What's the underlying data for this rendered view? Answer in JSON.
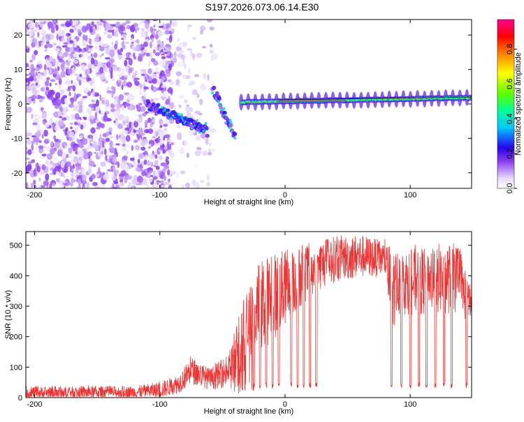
{
  "title": "S197.2026.073.06.14.E30",
  "colors": {
    "snr_line": "#ee3333",
    "scatter_low": "#d9c2f5",
    "scatter_mid": "#9a5cf0",
    "scatter_high": "#6a10e8"
  },
  "chart_data": [
    {
      "type": "heatmap",
      "name": "spectrogram",
      "xlabel": "Height of straight line (km)",
      "ylabel": "Frequency (Hz)",
      "xlim": [
        -207,
        149
      ],
      "ylim": [
        -24.5,
        24.5
      ],
      "xticks": [
        -200,
        -100,
        0,
        100
      ],
      "xtick_labels": [
        "-200",
        "-100",
        "0",
        "100"
      ],
      "yticks": [
        -20,
        -10,
        0,
        10,
        20
      ],
      "ytick_labels": [
        "-20",
        "-10",
        "0",
        "10",
        "20"
      ],
      "grid": false,
      "colorbar": {
        "label": "Normalized spectral amplitude",
        "range": [
          0,
          0.97
        ],
        "ticks": [
          0.0,
          0.2,
          0.4,
          0.6,
          0.8
        ],
        "tick_labels": [
          "0.0",
          "0.2",
          "0.4",
          "0.6",
          "0.8"
        ],
        "colormap": "rainbow-white-to-magenta"
      },
      "features": [
        {
          "desc": "noise scatter",
          "x_range": [
            -207,
            -90
          ],
          "freq_range": [
            -24.5,
            24.5
          ],
          "amplitude": 0.05
        },
        {
          "desc": "sparse noise",
          "x_range": [
            -90,
            -55
          ],
          "freq_range": [
            -24.5,
            24.5
          ],
          "amplitude": 0.03
        },
        {
          "desc": "descending track",
          "x_from": -110,
          "x_to": -62,
          "freq_from": 0,
          "freq_to": -8,
          "amplitude": 0.22
        },
        {
          "desc": "descending track",
          "x_from": -58,
          "x_to": -40,
          "freq_from": 5,
          "freq_to": -10,
          "amplitude": 0.2
        },
        {
          "desc": "carrier line",
          "x_from": -35,
          "x_to": 149,
          "freq_from": 0.5,
          "freq_to": 1.8,
          "amplitude": 0.9
        }
      ]
    },
    {
      "type": "line",
      "name": "snr",
      "xlabel": "Height of straight line (km)",
      "ylabel": "SNR (10 * v/v)",
      "xlim": [
        -207,
        149
      ],
      "ylim": [
        0,
        545
      ],
      "xticks": [
        -200,
        -100,
        0,
        100
      ],
      "xtick_labels": [
        "-200",
        "-100",
        "0",
        "100"
      ],
      "yticks": [
        0,
        100,
        200,
        300,
        400,
        500
      ],
      "ytick_labels": [
        "0",
        "100",
        "200",
        "300",
        "400",
        "500"
      ],
      "grid": false,
      "series": [
        {
          "name": "SNR",
          "envelope_x": [
            -207,
            -120,
            -100,
            -85,
            -75,
            -60,
            -45,
            -35,
            -28,
            -20,
            -10,
            0,
            10,
            20,
            30,
            40,
            60,
            80,
            85,
            90,
            100,
            120,
            135,
            140,
            145,
            149
          ],
          "envelope_mean": [
            15,
            18,
            25,
            45,
            90,
            60,
            90,
            170,
            260,
            300,
            330,
            360,
            390,
            420,
            440,
            455,
            465,
            455,
            350,
            380,
            380,
            390,
            390,
            380,
            320,
            310
          ],
          "envelope_peak": [
            40,
            40,
            55,
            80,
            140,
            100,
            150,
            330,
            400,
            470,
            490,
            500,
            505,
            520,
            530,
            540,
            545,
            520,
            520,
            500,
            500,
            520,
            520,
            500,
            400,
            370
          ],
          "dropouts_x": [
            -25,
            -20,
            -15,
            -10,
            -5,
            5,
            10,
            15,
            20,
            25,
            85,
            93,
            100,
            107,
            113,
            120,
            127,
            133,
            145
          ],
          "dropout_floor": 30
        }
      ]
    }
  ]
}
